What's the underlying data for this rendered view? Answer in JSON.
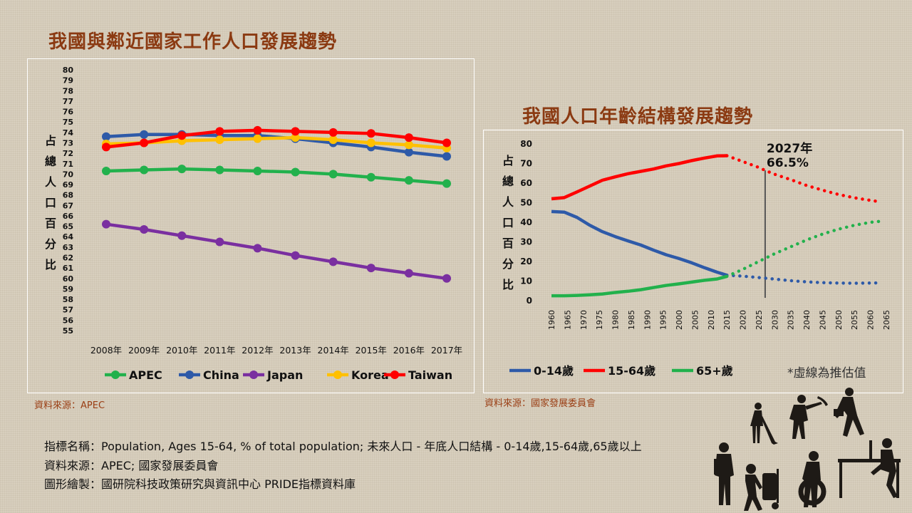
{
  "left_title": "我國與鄰近國家工作人口發展趨勢",
  "right_title": "我國人口年齡結構發展趨勢",
  "left_source": "資料來源：APEC",
  "right_source": "資料來源：國家發展委員會",
  "footer": {
    "line1": "指標名稱：Population, Ages 15-64, % of total population; 未來人口 - 年底人口結構 - 0-14歲,15-64歲,65歲以上",
    "line2": "資料來源：APEC; 國家發展委員會",
    "line3": "圖形繪製：國研院科技政策研究與資訊中心 PRIDE指標資料庫"
  },
  "chart_data": [
    {
      "type": "line",
      "ylabel": "占總人口百分比",
      "ylim": [
        55,
        80
      ],
      "categories": [
        "2008年",
        "2009年",
        "2010年",
        "2011年",
        "2012年",
        "2013年",
        "2014年",
        "2015年",
        "2016年",
        "2017年"
      ],
      "legend_position": "bottom",
      "series": [
        {
          "name": "APEC",
          "color": "#22b14c",
          "values": [
            70.3,
            70.4,
            70.5,
            70.4,
            70.3,
            70.2,
            70.0,
            69.7,
            69.4,
            69.1
          ]
        },
        {
          "name": "China",
          "color": "#2e5aa8",
          "values": [
            73.6,
            73.8,
            73.8,
            73.7,
            73.7,
            73.4,
            73.0,
            72.6,
            72.1,
            71.7
          ]
        },
        {
          "name": "Japan",
          "color": "#7a2fa0",
          "values": [
            65.2,
            64.7,
            64.1,
            63.5,
            62.9,
            62.2,
            61.6,
            61.0,
            60.5,
            60.0
          ]
        },
        {
          "name": "Korea",
          "color": "#ffc000",
          "values": [
            72.9,
            73.0,
            73.2,
            73.3,
            73.4,
            73.5,
            73.3,
            73.0,
            72.8,
            72.5
          ]
        },
        {
          "name": "Taiwan",
          "color": "#ff0000",
          "values": [
            72.6,
            73.0,
            73.7,
            74.1,
            74.2,
            74.1,
            74.0,
            73.9,
            73.5,
            73.0
          ]
        }
      ]
    },
    {
      "type": "line",
      "ylabel": "占總人口百分比",
      "ylim": [
        0,
        80
      ],
      "x_ticks": [
        1960,
        1965,
        1970,
        1975,
        1980,
        1985,
        1990,
        1995,
        2000,
        2005,
        2010,
        2015,
        2020,
        2025,
        2030,
        2035,
        2040,
        2045,
        2050,
        2055,
        2060,
        2065
      ],
      "projection_start": 2015,
      "legend_position": "bottom",
      "note": "*虛線為推估值",
      "annotation": {
        "x": 2027,
        "year_label": "2027年",
        "value_label": "66.5%",
        "value": 66.5
      },
      "series": [
        {
          "name": "0-14歲",
          "color": "#2e5aa8",
          "x": [
            1960,
            1964,
            1968,
            1972,
            1976,
            1980,
            1984,
            1988,
            1992,
            1996,
            2000,
            2004,
            2008,
            2012,
            2015,
            2020,
            2025,
            2030,
            2035,
            2040,
            2045,
            2050,
            2055,
            2060,
            2063
          ],
          "values": [
            45.5,
            45.2,
            42.5,
            38.5,
            35.2,
            32.7,
            30.5,
            28.4,
            25.8,
            23.4,
            21.5,
            19.3,
            16.8,
            14.5,
            13.0,
            12.5,
            11.8,
            11.0,
            10.2,
            9.6,
            9.2,
            9.0,
            8.9,
            9.0,
            9.1
          ]
        },
        {
          "name": "15-64歲",
          "color": "#ff0000",
          "x": [
            1960,
            1964,
            1968,
            1972,
            1976,
            1980,
            1984,
            1988,
            1992,
            1996,
            2000,
            2004,
            2008,
            2012,
            2015,
            2020,
            2025,
            2027,
            2030,
            2035,
            2040,
            2045,
            2050,
            2055,
            2060,
            2063
          ],
          "values": [
            52,
            52.6,
            55.5,
            58.5,
            61.5,
            63.2,
            64.8,
            66.0,
            67.2,
            68.8,
            70.0,
            71.5,
            72.8,
            73.9,
            74.0,
            71.0,
            68.0,
            66.5,
            64.5,
            61.8,
            58.8,
            56.4,
            54.2,
            52.5,
            51.2,
            50.5
          ]
        },
        {
          "name": "65+歲",
          "color": "#22b14c",
          "x": [
            1960,
            1964,
            1968,
            1972,
            1976,
            1980,
            1984,
            1988,
            1992,
            1996,
            2000,
            2004,
            2008,
            2012,
            2015,
            2020,
            2025,
            2030,
            2035,
            2040,
            2045,
            2050,
            2055,
            2060,
            2063
          ],
          "values": [
            2.5,
            2.5,
            2.7,
            3.0,
            3.4,
            4.2,
            4.8,
            5.6,
            6.7,
            7.8,
            8.6,
            9.5,
            10.4,
            11.1,
            12.4,
            16.0,
            20.0,
            24.0,
            27.5,
            31.0,
            34.0,
            36.5,
            38.5,
            40.0,
            40.5
          ]
        }
      ]
    }
  ]
}
